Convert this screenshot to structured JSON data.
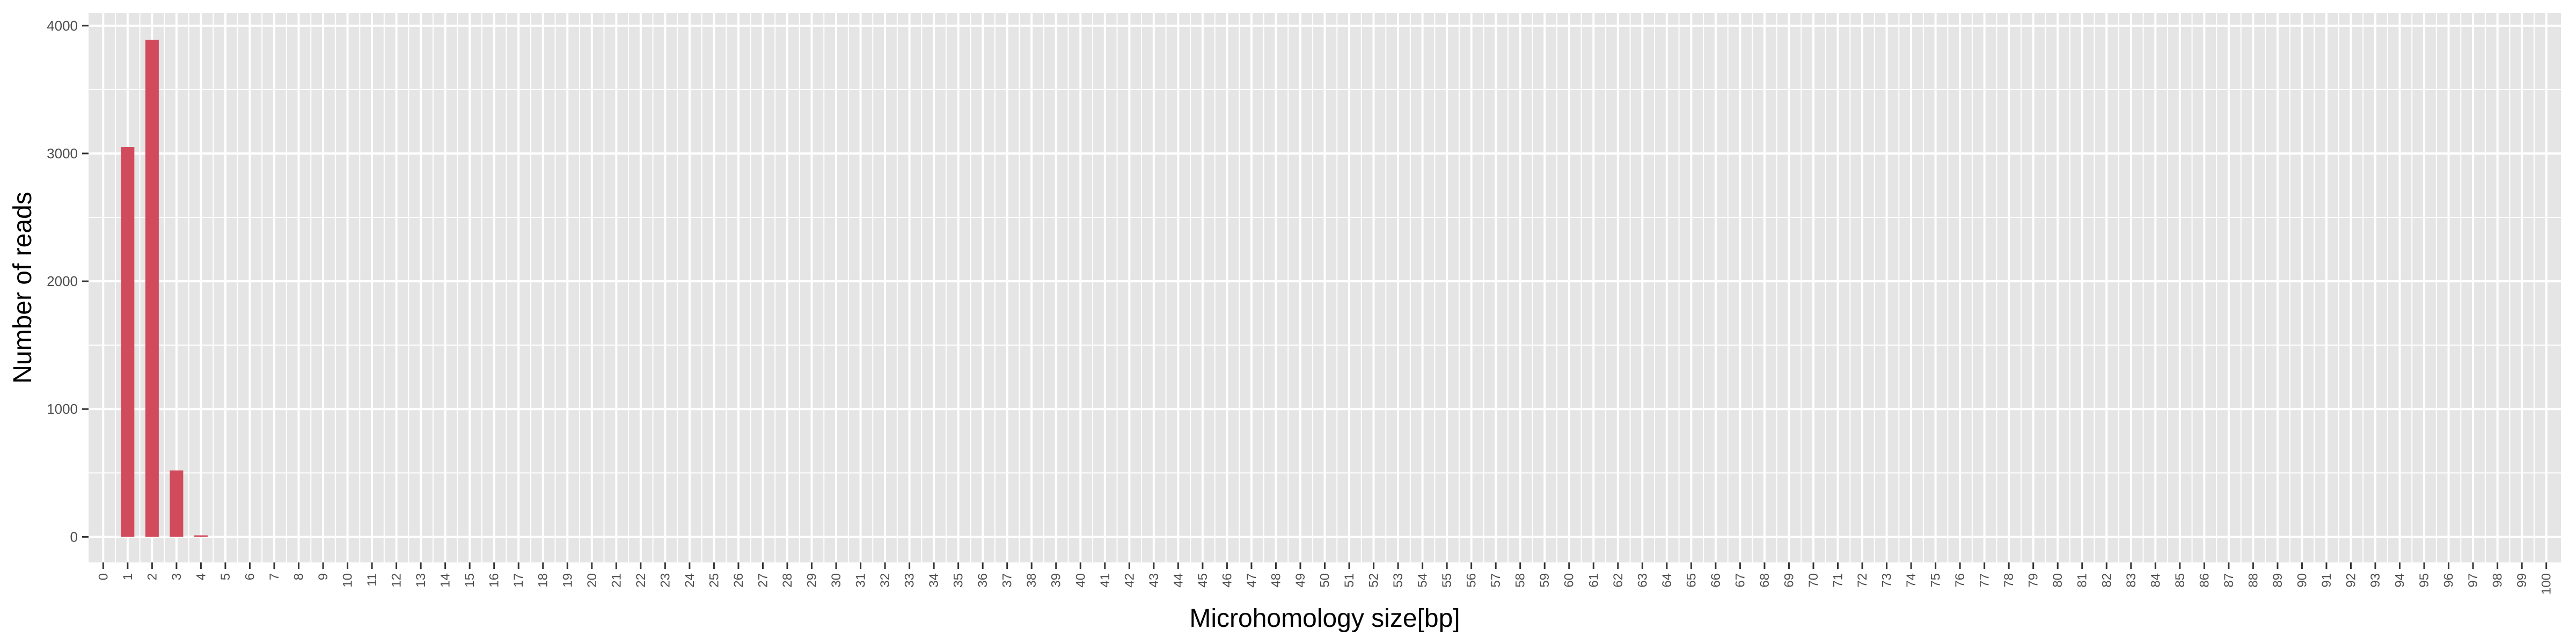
{
  "chart_data": {
    "type": "bar",
    "title": "",
    "xlabel": "Microhomology size[bp]",
    "ylabel": "Number of reads",
    "x_range": [
      0,
      100
    ],
    "ylim": [
      -200,
      4100
    ],
    "y_ticks": [
      0,
      1000,
      2000,
      3000,
      4000
    ],
    "grid": true,
    "legend": "none",
    "colors": {
      "bar": "#d24b5c",
      "panel": "#e5e5e5",
      "grid": "#ffffff"
    },
    "bars": [
      {
        "x": 1,
        "value": 3050
      },
      {
        "x": 2,
        "value": 3890
      },
      {
        "x": 3,
        "value": 520
      },
      {
        "x": 4,
        "value": 12
      }
    ]
  }
}
